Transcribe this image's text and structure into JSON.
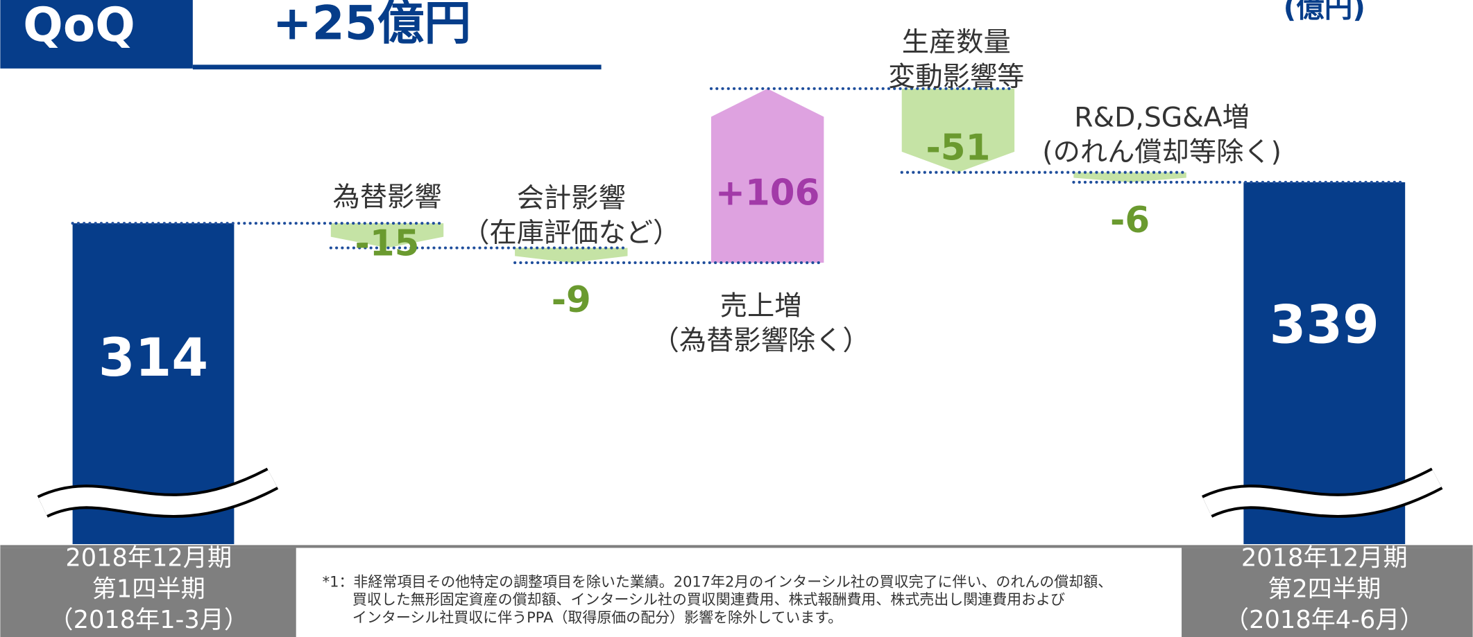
{
  "header": {
    "tag": "QoQ",
    "headline": "+25億円",
    "unit": "(億円)"
  },
  "chart_data": {
    "type": "waterfall",
    "categories": [
      [
        "2018年12月期",
        "第1四半期",
        "（2018年1-3月）"
      ],
      [
        "為替影響"
      ],
      [
        "会計影響",
        "（在庫評価など）"
      ],
      [
        "売上増",
        "（為替影響除く）"
      ],
      [
        "生産数量",
        "変動影響等"
      ],
      [
        "R&D,SG&A増",
        "(のれん償却等除く)"
      ],
      [
        "2018年12月期",
        "第2四半期",
        "（2018年4-6月）"
      ]
    ],
    "values": [
      314,
      -15,
      -9,
      106,
      -51,
      -6,
      339
    ],
    "value_labels": [
      "314",
      "-15",
      "-9",
      "+106",
      "-51",
      "-6",
      "339"
    ],
    "total_color": "#063d8a",
    "increase_color": "#dea2e0",
    "decrease_color": "#c5e3a5"
  },
  "footnote": [
    "*1：非経常項目その他特定の調整項目を除いた業績。2017年2月のインターシル社の買収完了に伴い、のれんの償却額、",
    "買収した無形固定資産の償却額、インターシル社の買収関連費用、株式報酬費用、株式売出し関連費用および",
    "インターシル社買収に伴うPPA（取得原価の配分）影響を除外しています。"
  ]
}
